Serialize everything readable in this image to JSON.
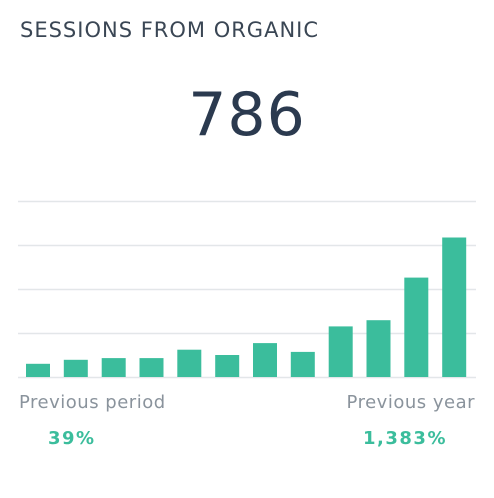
{
  "widget": {
    "title": "SESSIONS FROM ORGANIC",
    "value": "786"
  },
  "comparisons": {
    "previous_period_label": "Previous period",
    "previous_period_value": "39%",
    "previous_year_label": "Previous year",
    "previous_year_value": "1,383%"
  },
  "colors": {
    "bar": "#3bbd9c",
    "grid": "#e3e6e9",
    "accent_text": "#3bbd9c"
  },
  "chart_data": {
    "type": "bar",
    "values": [
      30,
      39,
      43,
      43,
      62,
      50,
      77,
      57,
      115,
      129,
      226,
      317
    ],
    "ylim": [
      0,
      400
    ],
    "grid": true,
    "gridlines": [
      0,
      100,
      200,
      300,
      400
    ],
    "title": "",
    "xlabel": "",
    "ylabel": ""
  }
}
